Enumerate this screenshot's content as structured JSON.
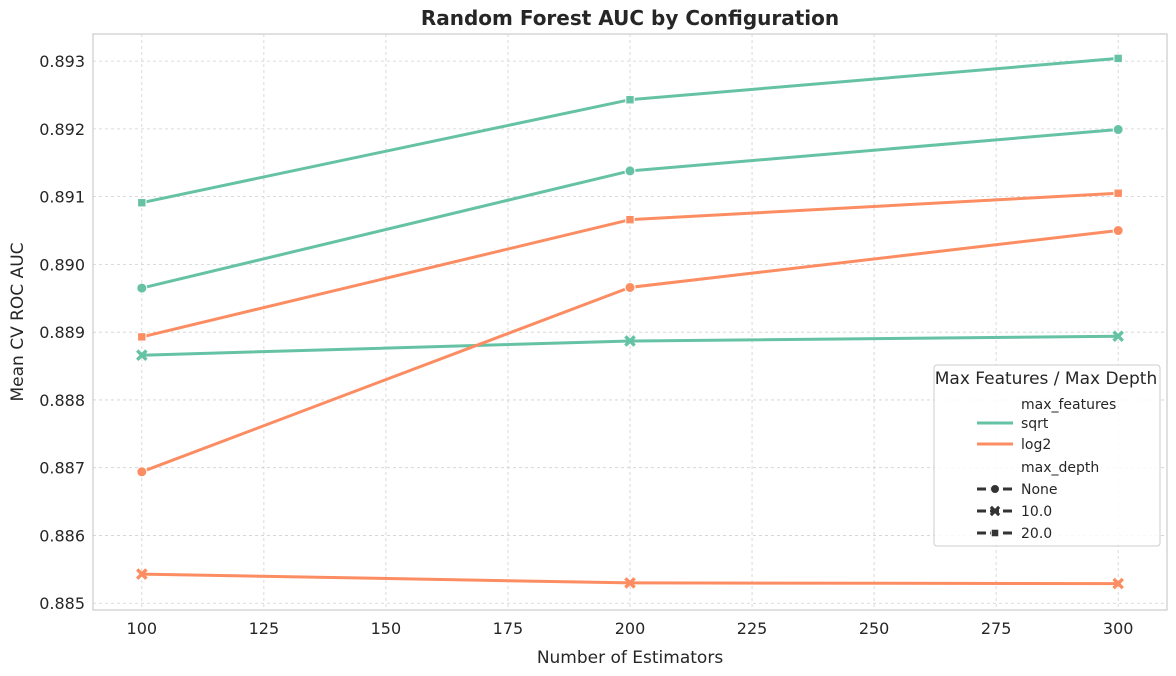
{
  "chart_data": {
    "type": "line",
    "title": "Random Forest AUC by Configuration",
    "xlabel": "Number of Estimators",
    "ylabel": "Mean CV ROC AUC",
    "x": [
      100,
      200,
      300
    ],
    "xlim": [
      90,
      310
    ],
    "ylim": [
      0.8849,
      0.8934
    ],
    "xticks": [
      100,
      125,
      150,
      175,
      200,
      225,
      250,
      275,
      300
    ],
    "yticks": [
      0.885,
      0.886,
      0.887,
      0.888,
      0.889,
      0.89,
      0.891,
      0.892,
      0.893
    ],
    "grid": true,
    "series": [
      {
        "max_features": "sqrt",
        "max_depth": "None",
        "values": [
          0.88965,
          0.89138,
          0.89199
        ]
      },
      {
        "max_features": "sqrt",
        "max_depth": "10.0",
        "values": [
          0.88866,
          0.88887,
          0.88894
        ]
      },
      {
        "max_features": "sqrt",
        "max_depth": "20.0",
        "values": [
          0.89091,
          0.89243,
          0.89304
        ]
      },
      {
        "max_features": "log2",
        "max_depth": "None",
        "values": [
          0.88694,
          0.88966,
          0.8905
        ]
      },
      {
        "max_features": "log2",
        "max_depth": "10.0",
        "values": [
          0.88543,
          0.8853,
          0.88529
        ]
      },
      {
        "max_features": "log2",
        "max_depth": "20.0",
        "values": [
          0.88893,
          0.89066,
          0.89105
        ]
      }
    ],
    "legend": {
      "title": "Max Features / Max Depth",
      "placement": "right",
      "hue_header": "max_features",
      "hue_entries": [
        {
          "label": "sqrt",
          "color": "#66c2a5"
        },
        {
          "label": "log2",
          "color": "#fc8d62"
        }
      ],
      "style_header": "max_depth",
      "style_entries": [
        {
          "label": "None",
          "marker": "circle"
        },
        {
          "label": "10.0",
          "marker": "x"
        },
        {
          "label": "20.0",
          "marker": "square"
        }
      ]
    },
    "colors": {
      "sqrt": "#66c2a5",
      "log2": "#fc8d62"
    }
  }
}
